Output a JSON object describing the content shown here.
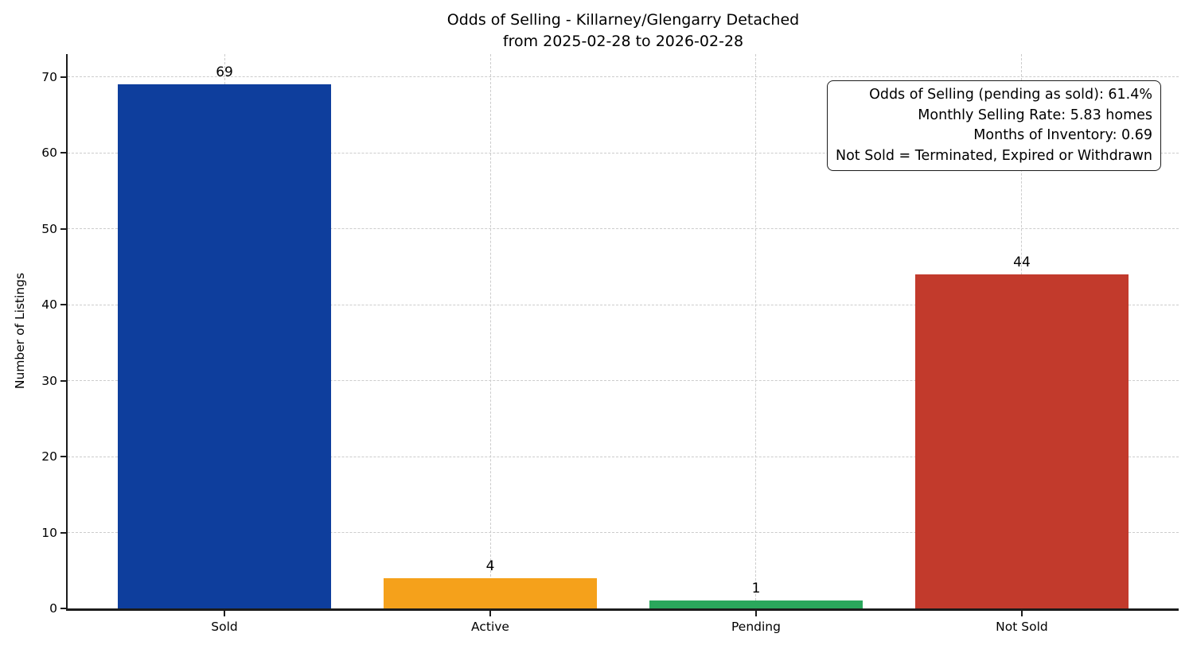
{
  "chart_data": {
    "type": "bar",
    "title": "Odds of Selling - Killarney/Glengarry Detached",
    "subtitle": "from 2025-02-28 to 2026-02-28",
    "ylabel": "Number of Listings",
    "xlabel": "",
    "categories": [
      "Sold",
      "Active",
      "Pending",
      "Not Sold"
    ],
    "values": [
      69,
      4,
      1,
      44
    ],
    "bar_colors": [
      "#0e3e9d",
      "#f5a11b",
      "#2aa75c",
      "#c23a2c"
    ],
    "value_labels": [
      "69",
      "4",
      "1",
      "44"
    ],
    "ylim": [
      0,
      73
    ],
    "yticks": [
      0,
      10,
      20,
      30,
      40,
      50,
      60,
      70
    ],
    "grid": true,
    "grid_style": "dashed",
    "legend_position": "none",
    "annotation_box": {
      "lines": [
        "Odds of Selling (pending as sold): 61.4%",
        "Monthly Selling Rate: 5.83 homes",
        "Months of Inventory: 0.69",
        "Not Sold = Terminated, Expired or Withdrawn"
      ]
    }
  },
  "colors": {
    "grid": "#cccccc",
    "spine": "#1c1c1c",
    "background": "#ffffff",
    "text": "#000000"
  }
}
